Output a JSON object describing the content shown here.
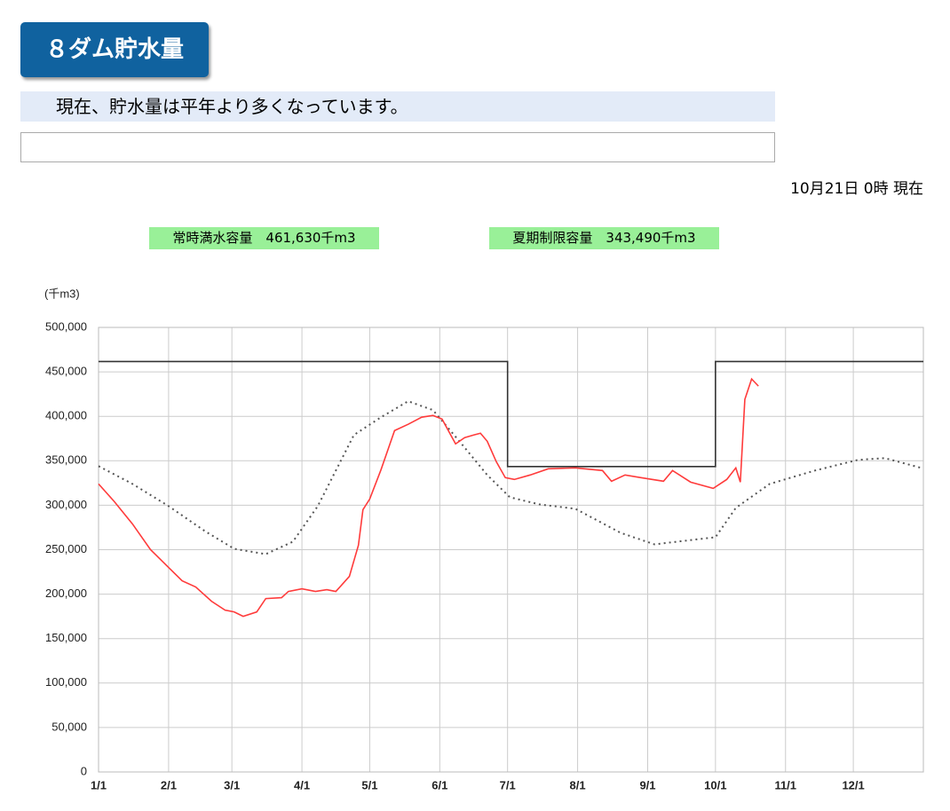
{
  "header": {
    "title": "８ダム貯水量",
    "status": "現在、貯水量は平年より多くなっています。",
    "timestamp": "10月21日 0時 現在",
    "capacity_full": "常時満水容量　461,630千m3",
    "capacity_summer": "夏期制限容量　343,490千m3"
  },
  "chart_data": {
    "type": "line",
    "y_label": "(千m3)",
    "xlim": [
      0,
      365
    ],
    "xticks": [
      {
        "value": 0,
        "label": "1/1"
      },
      {
        "value": 31,
        "label": "2/1"
      },
      {
        "value": 59,
        "label": "3/1"
      },
      {
        "value": 90,
        "label": "4/1"
      },
      {
        "value": 120,
        "label": "5/1"
      },
      {
        "value": 151,
        "label": "6/1"
      },
      {
        "value": 181,
        "label": "7/1"
      },
      {
        "value": 212,
        "label": "8/1"
      },
      {
        "value": 243,
        "label": "9/1"
      },
      {
        "value": 273,
        "label": "10/1"
      },
      {
        "value": 304,
        "label": "11/1"
      },
      {
        "value": 334,
        "label": "12/1"
      }
    ],
    "ylim": [
      0,
      500000
    ],
    "yticks": [
      0,
      {
        "value": 50000,
        "label": "50,000"
      },
      {
        "value": 100000,
        "label": "100,000"
      },
      {
        "value": 150000,
        "label": "150,000"
      },
      {
        "value": 200000,
        "label": "200,000"
      },
      {
        "value": 250000,
        "label": "250,000"
      },
      {
        "value": 300000,
        "label": "300,000"
      },
      {
        "value": 350000,
        "label": "350,000"
      },
      {
        "value": 400000,
        "label": "400,000"
      },
      {
        "value": 450000,
        "label": "450,000"
      },
      {
        "value": 500000,
        "label": "500,000"
      }
    ],
    "grid": true,
    "series": [
      {
        "color": "#333333",
        "dash": "none",
        "x": [
          0,
          181,
          181,
          273,
          273,
          365
        ],
        "values": [
          461630,
          461630,
          343490,
          343490,
          461630,
          461630
        ]
      },
      {
        "color": "#555555",
        "dash": "dotted",
        "x": [
          0,
          15,
          31,
          47,
          60,
          74,
          86,
          97,
          113,
          125,
          137,
          148,
          160,
          172,
          182,
          195,
          211,
          231,
          246,
          266,
          273,
          282,
          297,
          317,
          336,
          348,
          364
        ],
        "values": [
          344000,
          324000,
          299000,
          271000,
          251000,
          245000,
          259000,
          299000,
          379000,
          399000,
          417000,
          407000,
          371000,
          334000,
          309000,
          301000,
          296000,
          269000,
          256000,
          262000,
          264000,
          297000,
          324000,
          339000,
          351000,
          353000,
          342000
        ]
      },
      {
        "color": "#ff3b3b",
        "dash": "none",
        "x": [
          0,
          7,
          15,
          23,
          31,
          37,
          43,
          50,
          56,
          60,
          64,
          70,
          74,
          81,
          84,
          90,
          96,
          101,
          105,
          111,
          115,
          117,
          120,
          125,
          131,
          137,
          143,
          148,
          152,
          158,
          162,
          166,
          169,
          172,
          176,
          180,
          184,
          191,
          199,
          211,
          223,
          227,
          233,
          240,
          250,
          254,
          262,
          272,
          278,
          282,
          284,
          286,
          289,
          292
        ],
        "values": [
          324000,
          304000,
          279000,
          250000,
          230000,
          215000,
          208000,
          192000,
          182000,
          180000,
          175000,
          180000,
          195000,
          196000,
          203000,
          206000,
          203000,
          205000,
          203000,
          220000,
          255000,
          295000,
          307000,
          340000,
          384000,
          391000,
          399000,
          401000,
          397000,
          369000,
          376000,
          379000,
          381000,
          372000,
          349000,
          331000,
          329000,
          334000,
          341000,
          342000,
          339000,
          327000,
          334000,
          331000,
          327000,
          339000,
          326000,
          319000,
          329000,
          342000,
          326000,
          419000,
          442000,
          434000
        ]
      }
    ]
  }
}
